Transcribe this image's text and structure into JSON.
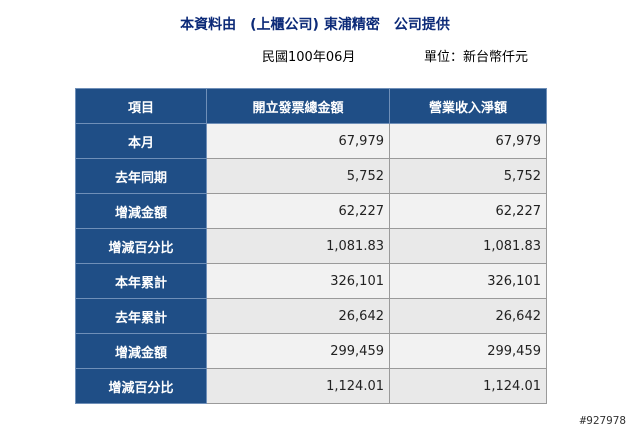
{
  "header": {
    "title": "本資料由　(上櫃公司) 東浦精密　公司提供",
    "date_label": "民國100年06月",
    "unit_label": "單位：新台幣仟元"
  },
  "table": {
    "columns": [
      "項目",
      "開立發票總金額",
      "營業收入淨額"
    ],
    "rows": [
      {
        "label": "本月",
        "invoice": "67,979",
        "revenue": "67,979"
      },
      {
        "label": "去年同期",
        "invoice": "5,752",
        "revenue": "5,752"
      },
      {
        "label": "增減金額",
        "invoice": "62,227",
        "revenue": "62,227"
      },
      {
        "label": "增減百分比",
        "invoice": "1,081.83",
        "revenue": "1,081.83"
      },
      {
        "label": "本年累計",
        "invoice": "326,101",
        "revenue": "326,101"
      },
      {
        "label": "去年累計",
        "invoice": "26,642",
        "revenue": "26,642"
      },
      {
        "label": "增減金額",
        "invoice": "299,459",
        "revenue": "299,459"
      },
      {
        "label": "增減百分比",
        "invoice": "1,124.01",
        "revenue": "1,124.01"
      }
    ]
  },
  "watermark": "#927978",
  "colors": {
    "header_bg": "#1f4e86",
    "title_text": "#0c2a78",
    "cell_bg_odd": "#f2f2f2",
    "cell_bg_even": "#e9e9e9"
  }
}
